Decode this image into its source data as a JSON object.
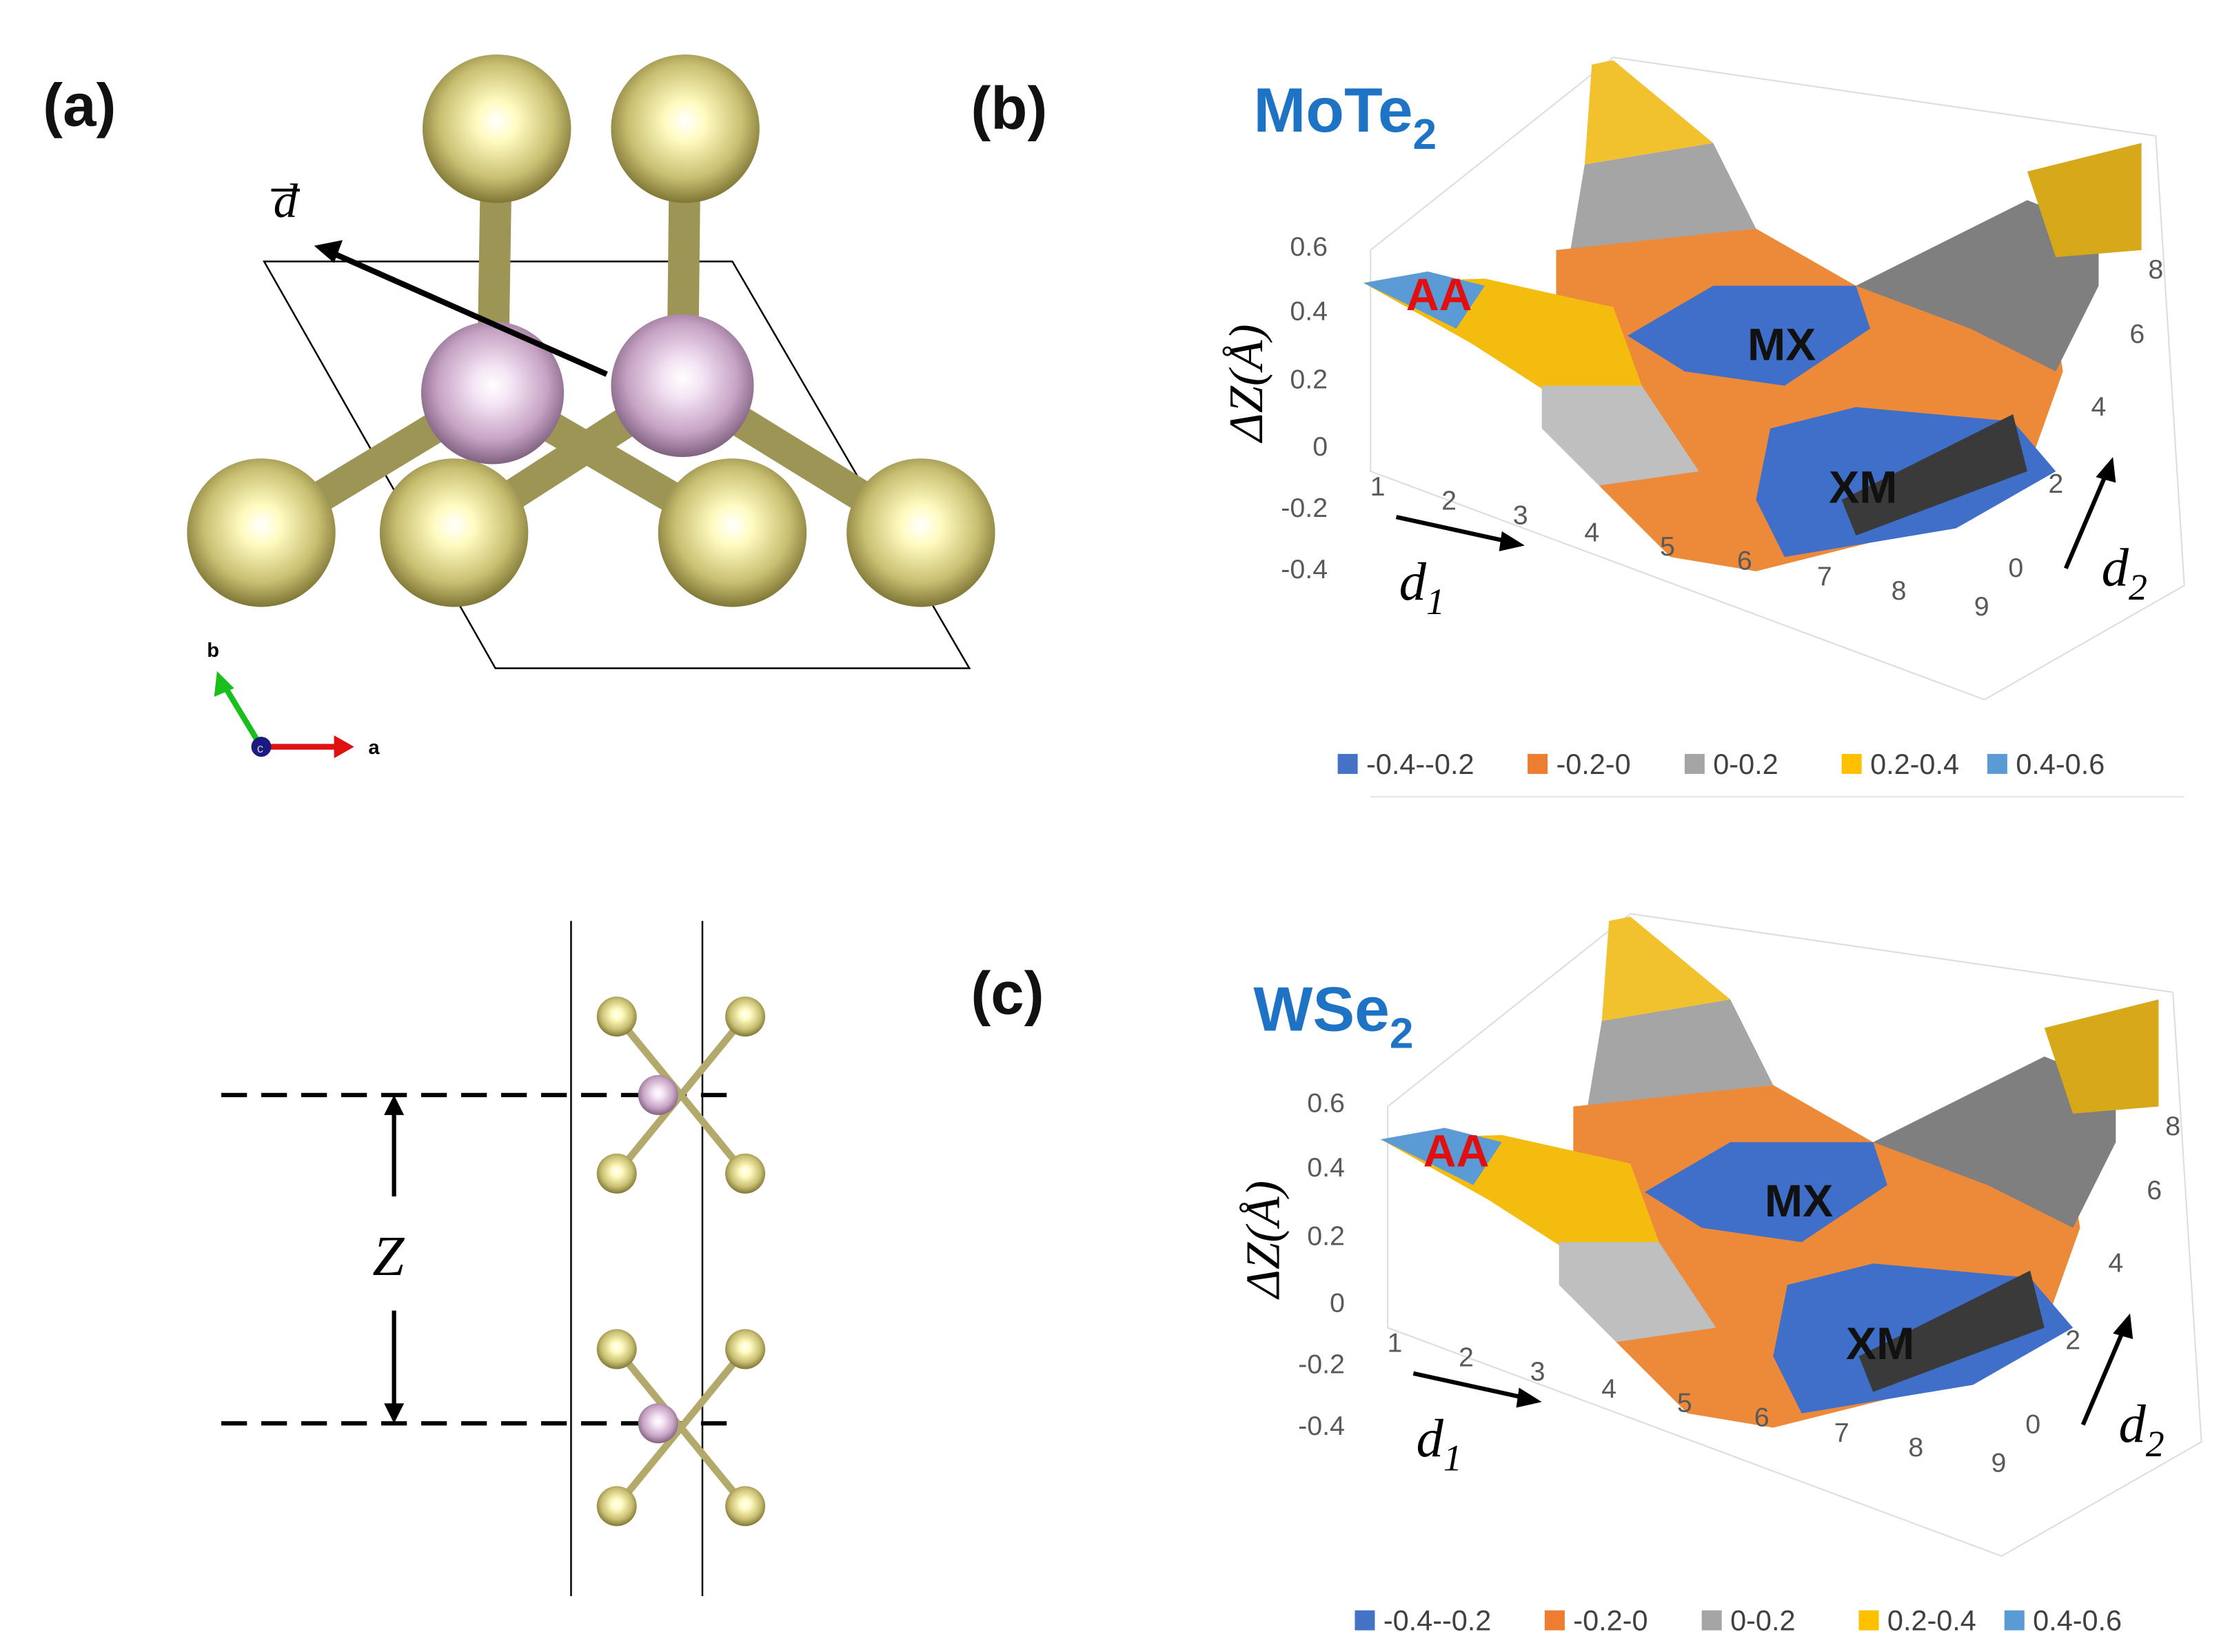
{
  "panels": {
    "a": "(a)",
    "b": "(b)",
    "c": "(c)"
  },
  "structure": {
    "vector_label": "d",
    "axis_b": "b",
    "axis_a": "a",
    "axis_c": "c",
    "z_label": "Z"
  },
  "plots": [
    {
      "material": "MoTe",
      "subscript": "2",
      "z_axis_label": "ΔZ(Å)",
      "z_ticks": [
        "0.6",
        "0.4",
        "0.2",
        "0",
        "-0.2",
        "-0.4"
      ],
      "d1_ticks": [
        "1",
        "2",
        "3",
        "4",
        "5",
        "6",
        "7",
        "8",
        "9"
      ],
      "d2_ticks": [
        "0",
        "2",
        "4",
        "6",
        "8"
      ],
      "d1_label": "d",
      "d1_sub": "1",
      "d2_label": "d",
      "d2_sub": "2",
      "markers": [
        "AA",
        "MX",
        "XM"
      ],
      "legend": [
        "-0.4--0.2",
        "-0.2-0",
        "0-0.2",
        "0.2-0.4",
        "0.4-0.6"
      ]
    },
    {
      "material": "WSe",
      "subscript": "2",
      "z_axis_label": "ΔZ(Å)",
      "z_ticks": [
        "0.6",
        "0.4",
        "0.2",
        "0",
        "-0.2",
        "-0.4"
      ],
      "d1_ticks": [
        "1",
        "2",
        "3",
        "4",
        "5",
        "6",
        "7",
        "8",
        "9"
      ],
      "d2_ticks": [
        "0",
        "2",
        "4",
        "6",
        "8"
      ],
      "d1_label": "d",
      "d1_sub": "1",
      "d2_label": "d",
      "d2_sub": "2",
      "markers": [
        "AA",
        "MX",
        "XM"
      ],
      "legend": [
        "-0.4--0.2",
        "-0.2-0",
        "0-0.2",
        "0.2-0.4",
        "0.4-0.6"
      ]
    }
  ]
}
